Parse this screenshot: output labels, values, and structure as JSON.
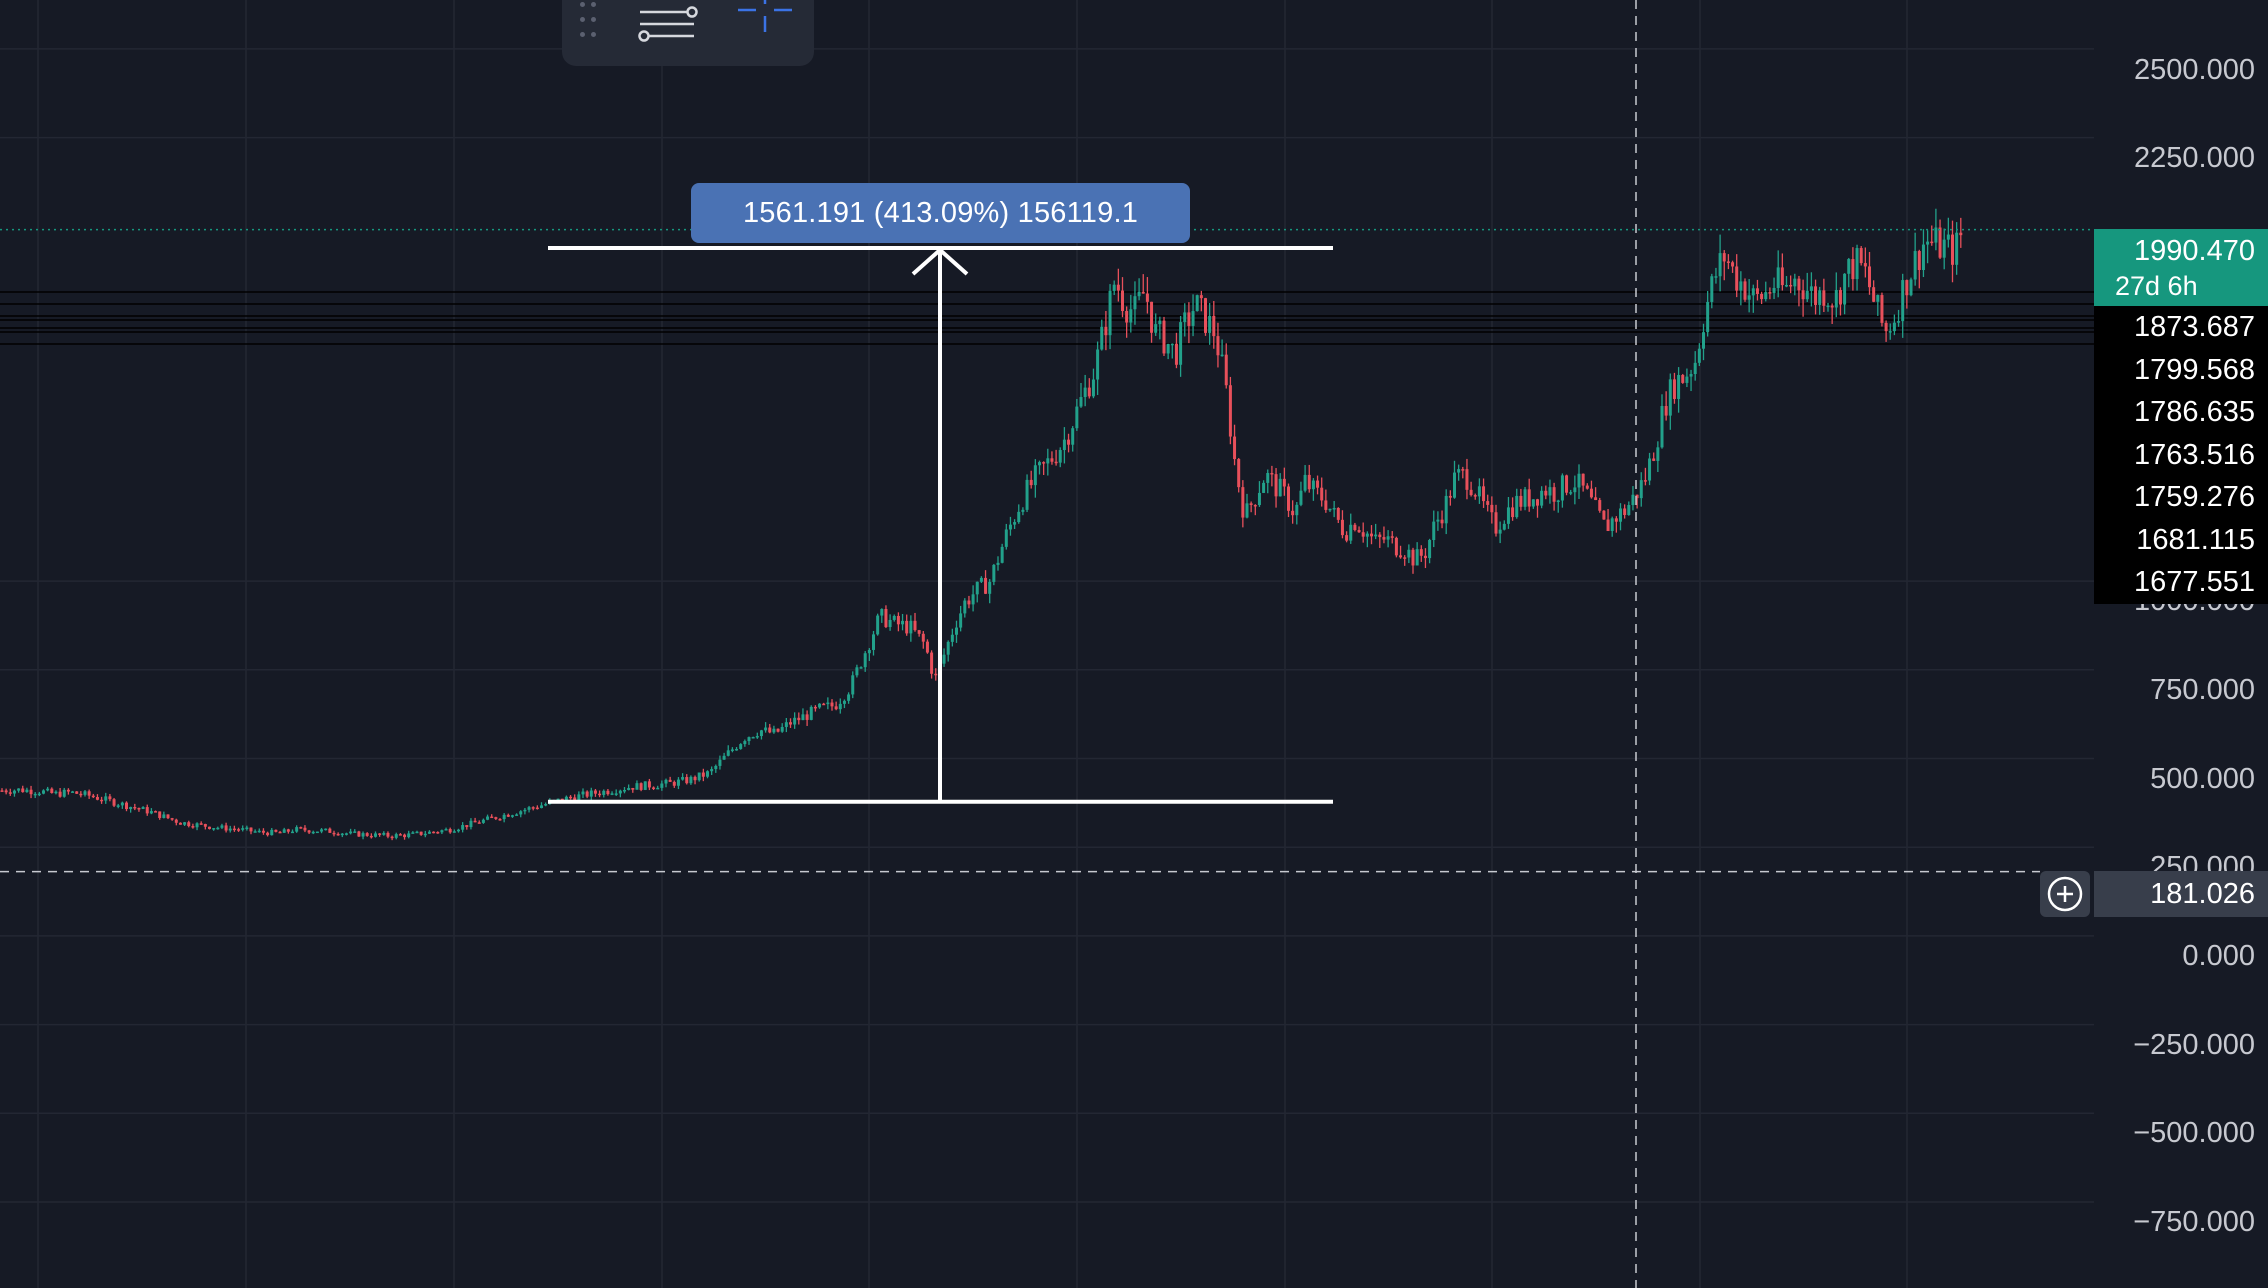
{
  "colors": {
    "background": "#161a25",
    "grid": "#232733",
    "up": "#22a18b",
    "down": "#e8505b",
    "measure": "#ffffff",
    "label_bg": "#4a72b4",
    "current": "#16977e"
  },
  "toolbar": {
    "grip_icon": "drag-handle-icon",
    "settings_icon": "sliders-icon",
    "crosshair_icon": "crosshair-icon"
  },
  "measure": {
    "label": "1561.191 (413.09%) 156119.1",
    "from": 378,
    "to": 1939
  },
  "price_axis": {
    "ticks": [
      "2500.000",
      "2250.000",
      "1000.000",
      "750.000",
      "500.000",
      "250.000",
      "0.000",
      "−250.000",
      "−500.000",
      "−750.000"
    ],
    "current_price": "1990.470",
    "countdown": "27d 6h",
    "price_lines": [
      "1873.687",
      "1799.568",
      "1786.635",
      "1763.516",
      "1759.276",
      "1681.115",
      "1677.551"
    ],
    "cursor_price": "181.026"
  },
  "chart_data": {
    "type": "candlestick",
    "ylim": [
      -900,
      2650
    ],
    "ticks": [
      2500,
      2250,
      1000,
      750,
      500,
      250,
      0,
      -250,
      -500,
      -750
    ],
    "current_price": 1990.47,
    "horizontal_levels": [
      1873.687,
      1799.568,
      1786.635,
      1763.516,
      1759.276,
      1681.115,
      1677.551
    ],
    "cursor_price": 181.026,
    "measure": {
      "from": 378,
      "to": 1939,
      "change": 1561.191,
      "change_pct": 413.09
    },
    "close_path": [
      [
        0,
        410
      ],
      [
        20,
        412
      ],
      [
        40,
        408
      ],
      [
        55,
        400
      ],
      [
        70,
        405
      ],
      [
        90,
        395
      ],
      [
        110,
        380
      ],
      [
        130,
        365
      ],
      [
        150,
        350
      ],
      [
        170,
        330
      ],
      [
        180,
        320
      ],
      [
        200,
        312
      ],
      [
        220,
        305
      ],
      [
        240,
        300
      ],
      [
        260,
        292
      ],
      [
        280,
        290
      ],
      [
        295,
        300
      ],
      [
        310,
        298
      ],
      [
        330,
        295
      ],
      [
        350,
        288
      ],
      [
        370,
        285
      ],
      [
        390,
        282
      ],
      [
        410,
        285
      ],
      [
        430,
        292
      ],
      [
        450,
        300
      ],
      [
        470,
        315
      ],
      [
        490,
        330
      ],
      [
        510,
        345
      ],
      [
        530,
        360
      ],
      [
        550,
        375
      ],
      [
        570,
        390
      ],
      [
        590,
        400
      ],
      [
        610,
        410
      ],
      [
        630,
        420
      ],
      [
        650,
        425
      ],
      [
        670,
        430
      ],
      [
        690,
        440
      ],
      [
        710,
        460
      ],
      [
        730,
        520
      ],
      [
        745,
        560
      ],
      [
        760,
        580
      ],
      [
        775,
        570
      ],
      [
        790,
        600
      ],
      [
        805,
        620
      ],
      [
        820,
        640
      ],
      [
        835,
        650
      ],
      [
        850,
        700
      ],
      [
        865,
        800
      ],
      [
        880,
        900
      ],
      [
        895,
        880
      ],
      [
        910,
        870
      ],
      [
        925,
        820
      ],
      [
        935,
        720
      ],
      [
        945,
        800
      ],
      [
        955,
        880
      ],
      [
        965,
        940
      ],
      [
        975,
        970
      ],
      [
        990,
        1000
      ],
      [
        1005,
        1120
      ],
      [
        1020,
        1220
      ],
      [
        1035,
        1290
      ],
      [
        1050,
        1340
      ],
      [
        1065,
        1400
      ],
      [
        1080,
        1500
      ],
      [
        1095,
        1600
      ],
      [
        1105,
        1720
      ],
      [
        1115,
        1850
      ],
      [
        1125,
        1780
      ],
      [
        1135,
        1760
      ],
      [
        1145,
        1820
      ],
      [
        1155,
        1700
      ],
      [
        1165,
        1680
      ],
      [
        1175,
        1640
      ],
      [
        1185,
        1720
      ],
      [
        1195,
        1780
      ],
      [
        1205,
        1740
      ],
      [
        1215,
        1700
      ],
      [
        1225,
        1560
      ],
      [
        1235,
        1330
      ],
      [
        1245,
        1180
      ],
      [
        1255,
        1240
      ],
      [
        1265,
        1300
      ],
      [
        1275,
        1270
      ],
      [
        1285,
        1240
      ],
      [
        1295,
        1190
      ],
      [
        1305,
        1280
      ],
      [
        1315,
        1250
      ],
      [
        1325,
        1230
      ],
      [
        1335,
        1180
      ],
      [
        1345,
        1140
      ],
      [
        1355,
        1170
      ],
      [
        1365,
        1140
      ],
      [
        1375,
        1110
      ],
      [
        1385,
        1120
      ],
      [
        1395,
        1100
      ],
      [
        1405,
        1090
      ],
      [
        1415,
        1060
      ],
      [
        1425,
        1080
      ],
      [
        1435,
        1160
      ],
      [
        1445,
        1210
      ],
      [
        1455,
        1290
      ],
      [
        1465,
        1300
      ],
      [
        1475,
        1260
      ],
      [
        1485,
        1200
      ],
      [
        1495,
        1150
      ],
      [
        1505,
        1190
      ],
      [
        1515,
        1220
      ],
      [
        1525,
        1230
      ],
      [
        1535,
        1240
      ],
      [
        1545,
        1260
      ],
      [
        1555,
        1250
      ],
      [
        1565,
        1270
      ],
      [
        1575,
        1280
      ],
      [
        1585,
        1250
      ],
      [
        1595,
        1200
      ],
      [
        1605,
        1150
      ],
      [
        1615,
        1180
      ],
      [
        1625,
        1200
      ],
      [
        1635,
        1240
      ],
      [
        1645,
        1290
      ],
      [
        1655,
        1380
      ],
      [
        1665,
        1500
      ],
      [
        1675,
        1560
      ],
      [
        1685,
        1580
      ],
      [
        1695,
        1620
      ],
      [
        1705,
        1760
      ],
      [
        1715,
        1860
      ],
      [
        1725,
        1920
      ],
      [
        1735,
        1860
      ],
      [
        1745,
        1830
      ],
      [
        1755,
        1790
      ],
      [
        1765,
        1810
      ],
      [
        1775,
        1840
      ],
      [
        1785,
        1820
      ],
      [
        1795,
        1850
      ],
      [
        1805,
        1830
      ],
      [
        1815,
        1800
      ],
      [
        1825,
        1820
      ],
      [
        1835,
        1790
      ],
      [
        1845,
        1860
      ],
      [
        1855,
        1900
      ],
      [
        1865,
        1870
      ],
      [
        1875,
        1780
      ],
      [
        1885,
        1700
      ],
      [
        1895,
        1750
      ],
      [
        1905,
        1840
      ],
      [
        1915,
        1900
      ],
      [
        1925,
        1960
      ],
      [
        1935,
        1950
      ],
      [
        1945,
        1940
      ],
      [
        1955,
        1930
      ],
      [
        1962,
        1980
      ]
    ]
  }
}
